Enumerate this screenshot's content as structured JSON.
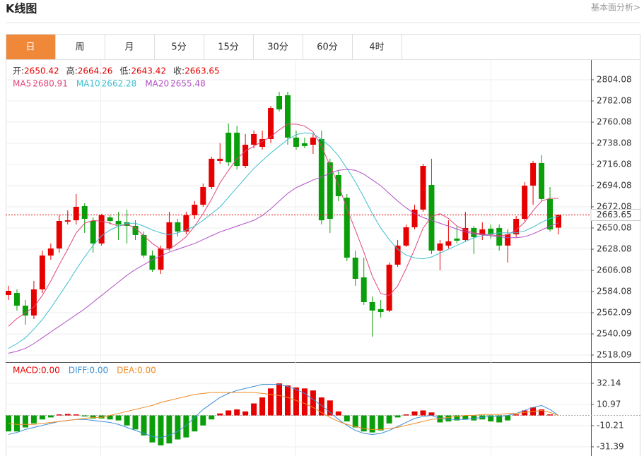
{
  "header": {
    "title": "K线图",
    "link": "基本面分析>"
  },
  "tabs": [
    "日",
    "周",
    "月",
    "5分",
    "15分",
    "30分",
    "60分",
    "4时"
  ],
  "active_tab": 0,
  "chart_data": [
    {
      "type": "candlestick",
      "ohlc_labels": [
        "开:",
        "高:",
        "低:",
        "收:"
      ],
      "up_color": "#e60000",
      "down_color": "#0a9e0a",
      "open": [
        2580.4,
        2582.6,
        2569.4,
        2559.2,
        2586.3,
        2621.5,
        2628.8,
        2656.7,
        2658.1,
        2672.8,
        2657.4,
        2634.0,
        2661.1,
        2657.4,
        2656.0,
        2652.3,
        2642.8,
        2621.5,
        2606.8,
        2628.8,
        2656.0,
        2646.4,
        2663.3,
        2674.3,
        2692.6,
        2719.8,
        2749.1,
        2749.1,
        2714.6,
        2736.6,
        2734.4,
        2742.5,
        2787.2,
        2788.0,
        2744.0,
        2738.1,
        2736.6,
        2742.5,
        2718.3,
        2705.1,
        2681.6,
        2619.3,
        2598.8,
        2573.1,
        2565.8,
        2564.3,
        2612.0,
        2631.8,
        2650.8,
        2669.2,
        2694.8,
        2626.6,
        2631.8,
        2639.1,
        2637.6,
        2650.1,
        2642.8,
        2649.4,
        2650.1,
        2631.8,
        2643.5,
        2659.6,
        2694.1,
        2717.6,
        2680.2,
        2650.42
      ],
      "high": [
        2590.0,
        2586.3,
        2575.3,
        2595.1,
        2626.6,
        2634.0,
        2663.3,
        2668.4,
        2685.3,
        2675.7,
        2661.1,
        2664.8,
        2663.3,
        2666.9,
        2669.2,
        2658.1,
        2646.4,
        2626.6,
        2631.8,
        2666.9,
        2659.6,
        2666.9,
        2678.0,
        2696.3,
        2724.2,
        2738.3,
        2758.6,
        2756.4,
        2747.6,
        2751.3,
        2751.3,
        2776.9,
        2791.6,
        2791.6,
        2751.3,
        2744.0,
        2747.6,
        2751.3,
        2722.0,
        2709.5,
        2685.3,
        2626.6,
        2619.3,
        2579.0,
        2575.3,
        2614.2,
        2637.6,
        2653.7,
        2674.3,
        2716.8,
        2722.0,
        2637.6,
        2658.1,
        2652.3,
        2666.9,
        2652.3,
        2656.0,
        2653.7,
        2653.7,
        2648.6,
        2662.5,
        2697.8,
        2719.8,
        2725.6,
        2692.6,
        2664.26
      ],
      "low": [
        2575.3,
        2564.3,
        2549.6,
        2555.5,
        2582.6,
        2617.1,
        2624.4,
        2653.7,
        2653.7,
        2645.0,
        2624.4,
        2631.8,
        2653.7,
        2637.6,
        2634.0,
        2637.6,
        2619.3,
        2604.6,
        2602.4,
        2626.6,
        2641.3,
        2643.5,
        2659.6,
        2672.1,
        2690.4,
        2716.8,
        2714.6,
        2710.9,
        2712.4,
        2733.0,
        2731.5,
        2738.3,
        2771.1,
        2736.6,
        2731.5,
        2733.0,
        2727.1,
        2653.7,
        2645.0,
        2678.0,
        2615.6,
        2590.0,
        2570.2,
        2537.2,
        2557.0,
        2562.8,
        2609.8,
        2630.3,
        2648.6,
        2666.9,
        2623.0,
        2606.1,
        2628.8,
        2634.0,
        2636.2,
        2623.0,
        2637.6,
        2638.9,
        2626.6,
        2614.2,
        2640.6,
        2657.4,
        2674.3,
        2678.0,
        2646.4,
        2643.42
      ],
      "close": [
        2584.8,
        2569.4,
        2559.2,
        2586.3,
        2621.5,
        2628.8,
        2657.4,
        2658.1,
        2672.1,
        2659.6,
        2634.0,
        2663.3,
        2657.4,
        2653.7,
        2652.3,
        2642.8,
        2621.5,
        2606.8,
        2628.8,
        2656.0,
        2646.4,
        2663.3,
        2674.3,
        2692.6,
        2722.0,
        2722.0,
        2718.3,
        2714.6,
        2736.6,
        2747.6,
        2742.5,
        2774.7,
        2773.3,
        2744.0,
        2734.4,
        2735.2,
        2744.0,
        2658.1,
        2659.6,
        2683.1,
        2619.3,
        2597.3,
        2573.1,
        2564.3,
        2562.8,
        2612.0,
        2631.8,
        2650.8,
        2669.2,
        2714.6,
        2626.6,
        2634.0,
        2636.2,
        2636.9,
        2650.1,
        2640.6,
        2648.6,
        2643.5,
        2631.8,
        2643.5,
        2659.6,
        2694.1,
        2717.6,
        2680.2,
        2648.6,
        2663.65
      ],
      "series": [
        {
          "name": "MA5",
          "color": "#e0457b",
          "values": [
            2548,
            2556,
            2562,
            2568,
            2580,
            2595,
            2612,
            2628,
            2645,
            2655,
            2658,
            2657,
            2655,
            2652,
            2654,
            2650,
            2642,
            2634,
            2628,
            2628,
            2634,
            2641,
            2652,
            2665,
            2680,
            2697,
            2710,
            2722,
            2730,
            2735,
            2740,
            2745,
            2752,
            2758,
            2758,
            2756,
            2750,
            2735,
            2715,
            2695,
            2670,
            2648,
            2625,
            2600,
            2582,
            2580,
            2590,
            2608,
            2628,
            2650,
            2662,
            2665,
            2660,
            2652,
            2648,
            2645,
            2644,
            2643,
            2642,
            2643,
            2648,
            2656,
            2668,
            2678,
            2681,
            2680.91
          ]
        },
        {
          "name": "MA10",
          "color": "#3bbfcf",
          "values": [
            2525,
            2530,
            2536,
            2545,
            2555,
            2567,
            2580,
            2593,
            2607,
            2620,
            2632,
            2642,
            2648,
            2652,
            2655,
            2655,
            2652,
            2648,
            2645,
            2643,
            2645,
            2648,
            2652,
            2658,
            2665,
            2672,
            2682,
            2692,
            2702,
            2712,
            2720,
            2728,
            2735,
            2742,
            2747,
            2749,
            2748,
            2742,
            2735,
            2725,
            2712,
            2698,
            2682,
            2665,
            2650,
            2638,
            2628,
            2622,
            2619,
            2618,
            2620,
            2624,
            2628,
            2632,
            2636,
            2640,
            2642,
            2644,
            2645,
            2645,
            2645,
            2647,
            2651,
            2656,
            2660,
            2662.28
          ]
        },
        {
          "name": "MA20",
          "color": "#b04fc4",
          "values": [
            2520,
            2522,
            2525,
            2530,
            2536,
            2542,
            2548,
            2554,
            2560,
            2566,
            2573,
            2580,
            2587,
            2594,
            2601,
            2607,
            2612,
            2617,
            2621,
            2625,
            2628,
            2631,
            2634,
            2638,
            2642,
            2646,
            2649,
            2652,
            2655,
            2658,
            2663,
            2670,
            2678,
            2686,
            2692,
            2696,
            2700,
            2703,
            2707,
            2710,
            2711,
            2710,
            2706,
            2700,
            2694,
            2686,
            2678,
            2671,
            2665,
            2661,
            2658,
            2655,
            2652,
            2649,
            2646,
            2644,
            2643,
            2642,
            2641,
            2640,
            2640,
            2641,
            2644,
            2648,
            2652,
            2655.48
          ]
        }
      ],
      "ylim": [
        2510.75,
        2824.6
      ],
      "yticks": [
        2518.09,
        2540.09,
        2562.09,
        2584.08,
        2606.08,
        2628.08,
        2650.08,
        2672.08,
        2694.08,
        2716.08,
        2738.08,
        2760.08,
        2782.08,
        2804.08
      ],
      "grid": true
    },
    {
      "type": "macd",
      "header": [
        "MACD:0.00",
        "DIFF:0.00",
        "DEA:0.00"
      ],
      "up_color": "#e60000",
      "down_color": "#0a9e0a",
      "values": [
        -16,
        -16,
        -12,
        -8,
        -4,
        -2,
        1,
        1.5,
        1,
        -1,
        -3,
        -3,
        -4,
        -5,
        -10,
        -14,
        -20,
        -27,
        -30,
        -28,
        -24,
        -22,
        -16,
        -10,
        -4,
        2,
        5,
        6,
        4,
        12,
        18,
        27,
        32,
        30,
        28,
        27,
        25,
        18,
        15,
        4,
        -6,
        -12,
        -16,
        -17,
        -15,
        -8,
        -2,
        1,
        4,
        5,
        3,
        -7,
        -6,
        -5,
        -4,
        -5,
        -4,
        -6,
        -7,
        -5,
        1,
        5,
        8,
        6,
        1,
        0
      ],
      "series": [
        {
          "name": "DIFF",
          "color": "#3b8fd9",
          "values": [
            -19,
            -17,
            -14,
            -12,
            -10,
            -8,
            -6,
            -5,
            -4,
            -4,
            -5,
            -6,
            -7,
            -9,
            -12,
            -15,
            -18,
            -21,
            -22,
            -20,
            -16,
            -10,
            -2,
            6,
            12,
            18,
            22,
            25,
            27,
            29,
            31,
            31,
            31,
            29,
            26,
            22,
            16,
            10,
            3,
            -4,
            -10,
            -15,
            -18,
            -19,
            -18,
            -15,
            -11,
            -7,
            -3,
            -1,
            0,
            -3,
            -4,
            -4,
            -4,
            -3,
            -2,
            -1,
            -1,
            0,
            2,
            5,
            8,
            10,
            6,
            0
          ]
        },
        {
          "name": "DEA",
          "color": "#f08a24",
          "values": [
            -8,
            -9,
            -9,
            -9,
            -8,
            -7,
            -6,
            -5,
            -4,
            -3,
            -2,
            -2,
            0,
            2,
            4,
            6,
            8,
            10,
            13,
            15,
            17,
            19,
            21,
            22,
            23,
            23,
            23,
            23,
            23,
            23,
            22,
            21,
            20,
            18,
            15,
            12,
            8,
            3,
            -2,
            -6,
            -9,
            -11,
            -13,
            -14,
            -14,
            -13,
            -12,
            -10,
            -8,
            -6,
            -4,
            -3,
            -2,
            -1,
            0,
            0,
            1,
            1,
            1,
            2,
            2,
            3,
            4,
            5,
            3,
            0
          ]
        }
      ],
      "header_colors": [
        "#e60000",
        "#3b8fd9",
        "#f08a24"
      ],
      "ylim": [
        -40.57,
        51.91
      ],
      "yticks": [
        -31.39,
        -10.21,
        10.97,
        32.14
      ]
    }
  ]
}
